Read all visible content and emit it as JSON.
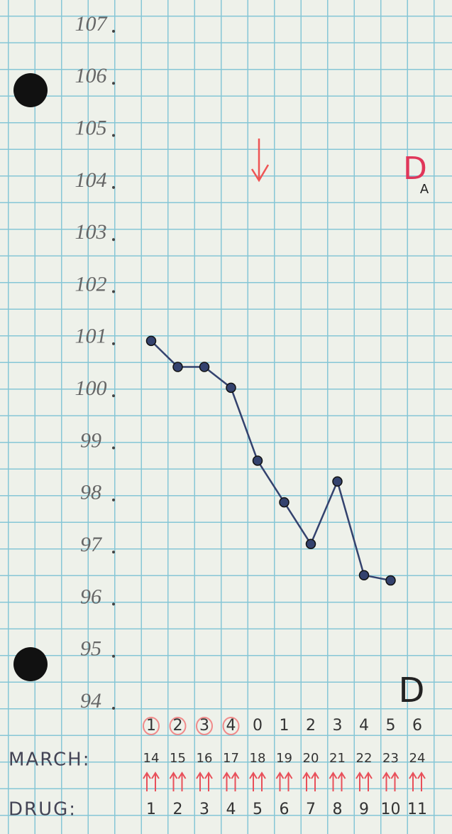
{
  "chart_data": {
    "type": "line",
    "categories": [
      "14",
      "15",
      "16",
      "17",
      "18",
      "19",
      "20",
      "21",
      "22",
      "23",
      "24"
    ],
    "category_label": "MARCH:",
    "day_numbers": [
      "1",
      "2",
      "3",
      "4",
      "0",
      "1",
      "2",
      "3",
      "4",
      "5",
      "6"
    ],
    "drug_label": "DRUG:",
    "drug_days": [
      "1",
      "2",
      "3",
      "4",
      "5",
      "6",
      "7",
      "8",
      "9",
      "10",
      "11"
    ],
    "values": [
      101.0,
      100.5,
      100.5,
      100.1,
      98.7,
      97.9,
      97.1,
      98.3,
      96.5,
      96.4,
      null
    ],
    "color": "#34426e",
    "ylim": [
      94,
      107
    ],
    "yticks": [
      94,
      95,
      96,
      97,
      98,
      99,
      100,
      101,
      102,
      103,
      104,
      105,
      106,
      107
    ],
    "annotation_top": "D",
    "annotation_top_sub": "A",
    "annotation_bottom": "D"
  }
}
